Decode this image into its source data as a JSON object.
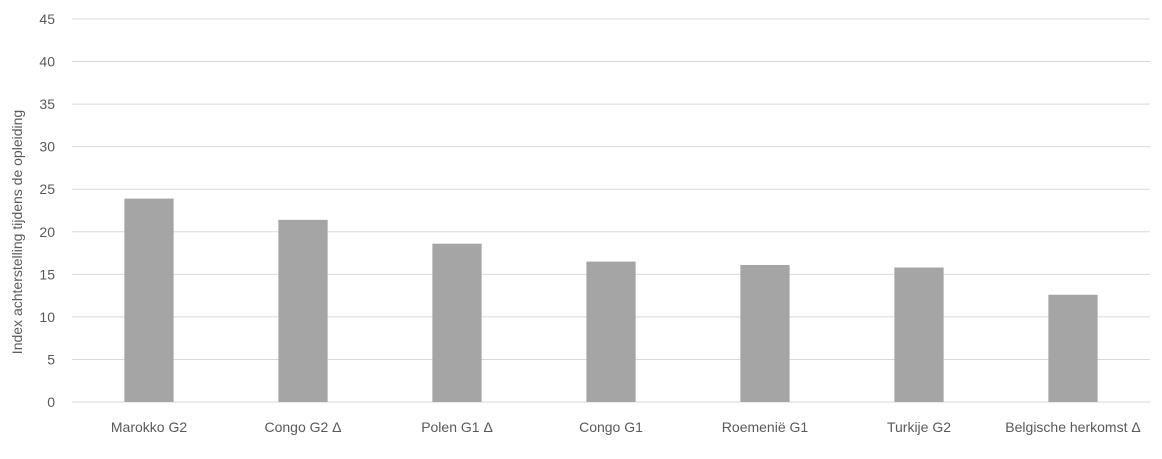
{
  "chart_data": {
    "type": "bar",
    "title": "",
    "xlabel": "",
    "ylabel": "Index achterstelling tijdens de opleiding",
    "ylim": [
      0,
      45
    ],
    "yticks": [
      0,
      5,
      10,
      15,
      20,
      25,
      30,
      35,
      40,
      45
    ],
    "grid": true,
    "legend": "none",
    "categories": [
      "Marokko G2",
      "Congo G2 Δ",
      "Polen G1  Δ",
      "Congo G1",
      "Roemenië G1",
      "Turkije G2",
      "Belgische herkomst Δ"
    ],
    "values": [
      23.9,
      21.4,
      18.6,
      16.5,
      16.1,
      15.8,
      12.6
    ],
    "colors": {
      "bar": "#a5a5a5",
      "grid": "#d9d9d9",
      "text": "#595959"
    }
  }
}
